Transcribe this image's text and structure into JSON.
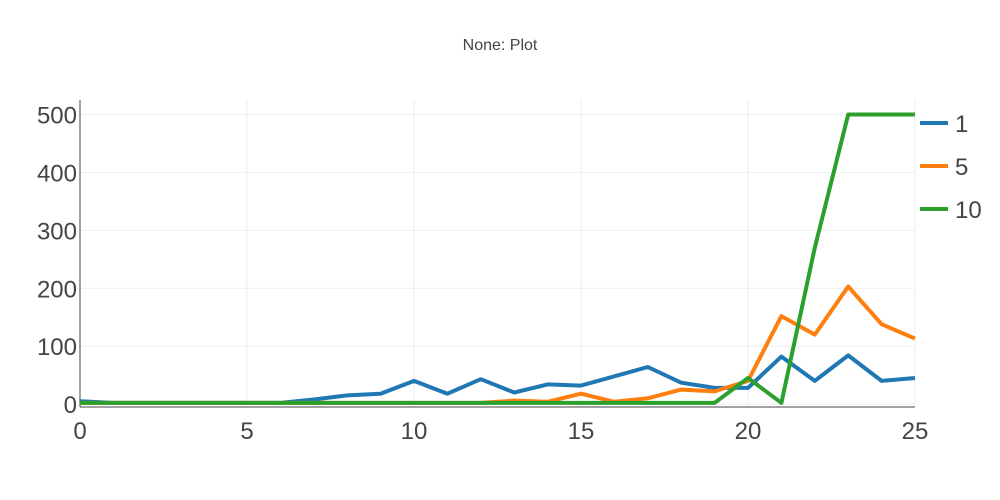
{
  "chart_data": {
    "type": "line",
    "title": "None: Plot",
    "xlabel": "",
    "ylabel": "",
    "xlim": [
      0,
      25
    ],
    "ylim": [
      -5,
      525
    ],
    "x_ticks": [
      0,
      5,
      10,
      15,
      20,
      25
    ],
    "y_ticks": [
      0,
      100,
      200,
      300,
      400,
      500
    ],
    "grid": true,
    "legend_position": "top-right",
    "x": [
      0,
      1,
      2,
      3,
      4,
      5,
      6,
      7,
      8,
      9,
      10,
      11,
      12,
      13,
      14,
      15,
      16,
      17,
      18,
      19,
      20,
      21,
      22,
      23,
      24,
      25
    ],
    "series": [
      {
        "name": "1",
        "color": "#1f77b4",
        "values": [
          5,
          2,
          2,
          2,
          2,
          2,
          2,
          8,
          15,
          18,
          40,
          18,
          43,
          20,
          34,
          32,
          48,
          64,
          37,
          28,
          28,
          82,
          40,
          84,
          40,
          45
        ]
      },
      {
        "name": "5",
        "color": "#ff7f0e",
        "values": [
          2,
          2,
          2,
          2,
          2,
          2,
          2,
          2,
          2,
          2,
          2,
          2,
          2,
          6,
          4,
          18,
          4,
          10,
          25,
          22,
          40,
          152,
          120,
          203,
          138,
          113
        ]
      },
      {
        "name": "10",
        "color": "#2ca02c",
        "values": [
          2,
          2,
          2,
          2,
          2,
          2,
          2,
          2,
          2,
          2,
          2,
          2,
          2,
          2,
          2,
          2,
          2,
          2,
          2,
          2,
          45,
          2,
          270,
          500,
          500,
          500
        ]
      }
    ]
  }
}
